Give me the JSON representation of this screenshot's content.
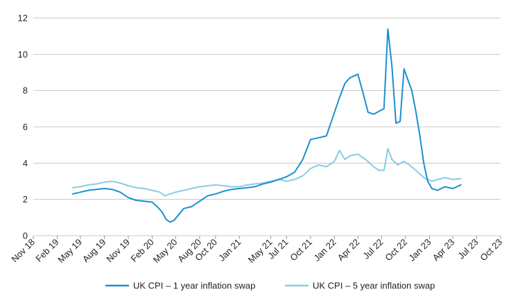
{
  "chart_data": {
    "type": "line",
    "title": "",
    "xlabel": "",
    "ylabel": "",
    "ylim": [
      0,
      12
    ],
    "y_ticks": [
      0,
      2,
      4,
      6,
      8,
      10,
      12
    ],
    "x_ticks": [
      "Nov 18",
      "Feb 19",
      "May 19",
      "Aug 19",
      "Nov 19",
      "Feb 20",
      "May 20",
      "Aug 20",
      "Oct 20",
      "Jan 21",
      "May 21",
      "Jul 21",
      "Oct 21",
      "Jan 22",
      "Apr 22",
      "Jul 22",
      "Oct 22",
      "Jan 23",
      "Apr 23",
      "Jul 23",
      "Oct 23"
    ],
    "grid": "horizontal",
    "legend_position": "bottom",
    "series": [
      {
        "name": "UK CPI – 1 year inflation swap",
        "color": "#1a8fcf",
        "points": [
          [
            "2019-04-01",
            2.3
          ],
          [
            "2019-05-01",
            2.4
          ],
          [
            "2019-06-01",
            2.5
          ],
          [
            "2019-07-01",
            2.55
          ],
          [
            "2019-08-01",
            2.6
          ],
          [
            "2019-09-01",
            2.55
          ],
          [
            "2019-10-01",
            2.4
          ],
          [
            "2019-11-01",
            2.1
          ],
          [
            "2019-12-01",
            1.95
          ],
          [
            "2020-01-01",
            1.9
          ],
          [
            "2020-02-01",
            1.85
          ],
          [
            "2020-02-20",
            1.6
          ],
          [
            "2020-03-10",
            1.3
          ],
          [
            "2020-03-25",
            0.9
          ],
          [
            "2020-04-10",
            0.75
          ],
          [
            "2020-04-25",
            0.85
          ],
          [
            "2020-05-15",
            1.2
          ],
          [
            "2020-06-01",
            1.5
          ],
          [
            "2020-07-01",
            1.6
          ],
          [
            "2020-08-01",
            1.9
          ],
          [
            "2020-09-01",
            2.2
          ],
          [
            "2020-10-01",
            2.3
          ],
          [
            "2020-11-01",
            2.45
          ],
          [
            "2020-12-01",
            2.55
          ],
          [
            "2021-01-01",
            2.6
          ],
          [
            "2021-02-01",
            2.65
          ],
          [
            "2021-03-01",
            2.7
          ],
          [
            "2021-04-01",
            2.85
          ],
          [
            "2021-05-01",
            2.95
          ],
          [
            "2021-06-01",
            3.1
          ],
          [
            "2021-07-01",
            3.25
          ],
          [
            "2021-08-01",
            3.5
          ],
          [
            "2021-09-01",
            4.2
          ],
          [
            "2021-10-01",
            5.3
          ],
          [
            "2021-11-01",
            5.4
          ],
          [
            "2021-12-01",
            5.5
          ],
          [
            "2022-01-01",
            6.8
          ],
          [
            "2022-01-20",
            7.6
          ],
          [
            "2022-02-10",
            8.4
          ],
          [
            "2022-03-01",
            8.7
          ],
          [
            "2022-04-01",
            8.9
          ],
          [
            "2022-04-20",
            7.9
          ],
          [
            "2022-05-10",
            6.8
          ],
          [
            "2022-06-01",
            6.7
          ],
          [
            "2022-06-20",
            6.85
          ],
          [
            "2022-07-10",
            7.0
          ],
          [
            "2022-07-25",
            11.4
          ],
          [
            "2022-08-10",
            9.3
          ],
          [
            "2022-08-25",
            6.2
          ],
          [
            "2022-09-10",
            6.3
          ],
          [
            "2022-09-25",
            9.2
          ],
          [
            "2022-10-10",
            8.6
          ],
          [
            "2022-10-25",
            8.0
          ],
          [
            "2022-11-10",
            6.8
          ],
          [
            "2022-11-25",
            5.5
          ],
          [
            "2022-12-10",
            4.0
          ],
          [
            "2022-12-25",
            3.0
          ],
          [
            "2023-01-10",
            2.6
          ],
          [
            "2023-02-01",
            2.5
          ],
          [
            "2023-03-01",
            2.7
          ],
          [
            "2023-04-01",
            2.6
          ],
          [
            "2023-05-01",
            2.8
          ]
        ]
      },
      {
        "name": "UK CPI – 5 year inflation swap",
        "color": "#88cce3",
        "points": [
          [
            "2019-04-01",
            2.65
          ],
          [
            "2019-05-01",
            2.7
          ],
          [
            "2019-06-01",
            2.8
          ],
          [
            "2019-07-01",
            2.85
          ],
          [
            "2019-08-01",
            2.95
          ],
          [
            "2019-09-01",
            3.0
          ],
          [
            "2019-10-01",
            2.9
          ],
          [
            "2019-11-01",
            2.75
          ],
          [
            "2019-12-01",
            2.65
          ],
          [
            "2020-01-01",
            2.6
          ],
          [
            "2020-02-01",
            2.5
          ],
          [
            "2020-03-01",
            2.4
          ],
          [
            "2020-03-20",
            2.2
          ],
          [
            "2020-04-10",
            2.3
          ],
          [
            "2020-05-01",
            2.4
          ],
          [
            "2020-06-01",
            2.5
          ],
          [
            "2020-07-01",
            2.6
          ],
          [
            "2020-08-01",
            2.7
          ],
          [
            "2020-09-01",
            2.75
          ],
          [
            "2020-10-01",
            2.8
          ],
          [
            "2020-11-01",
            2.75
          ],
          [
            "2020-12-01",
            2.7
          ],
          [
            "2021-01-01",
            2.7
          ],
          [
            "2021-02-01",
            2.8
          ],
          [
            "2021-03-01",
            2.85
          ],
          [
            "2021-04-01",
            2.9
          ],
          [
            "2021-05-01",
            3.0
          ],
          [
            "2021-06-01",
            3.1
          ],
          [
            "2021-07-01",
            3.0
          ],
          [
            "2021-08-01",
            3.1
          ],
          [
            "2021-09-01",
            3.3
          ],
          [
            "2021-10-01",
            3.7
          ],
          [
            "2021-11-01",
            3.9
          ],
          [
            "2021-12-01",
            3.8
          ],
          [
            "2022-01-01",
            4.1
          ],
          [
            "2022-01-20",
            4.7
          ],
          [
            "2022-02-10",
            4.2
          ],
          [
            "2022-03-01",
            4.4
          ],
          [
            "2022-04-01",
            4.5
          ],
          [
            "2022-05-01",
            4.2
          ],
          [
            "2022-06-01",
            3.8
          ],
          [
            "2022-06-20",
            3.6
          ],
          [
            "2022-07-10",
            3.6
          ],
          [
            "2022-07-25",
            4.8
          ],
          [
            "2022-08-10",
            4.2
          ],
          [
            "2022-09-01",
            3.9
          ],
          [
            "2022-09-25",
            4.1
          ],
          [
            "2022-10-15",
            3.9
          ],
          [
            "2022-11-10",
            3.6
          ],
          [
            "2022-12-10",
            3.2
          ],
          [
            "2023-01-10",
            3.0
          ],
          [
            "2023-02-01",
            3.1
          ],
          [
            "2023-03-01",
            3.2
          ],
          [
            "2023-04-01",
            3.1
          ],
          [
            "2023-05-01",
            3.15
          ]
        ]
      }
    ]
  }
}
